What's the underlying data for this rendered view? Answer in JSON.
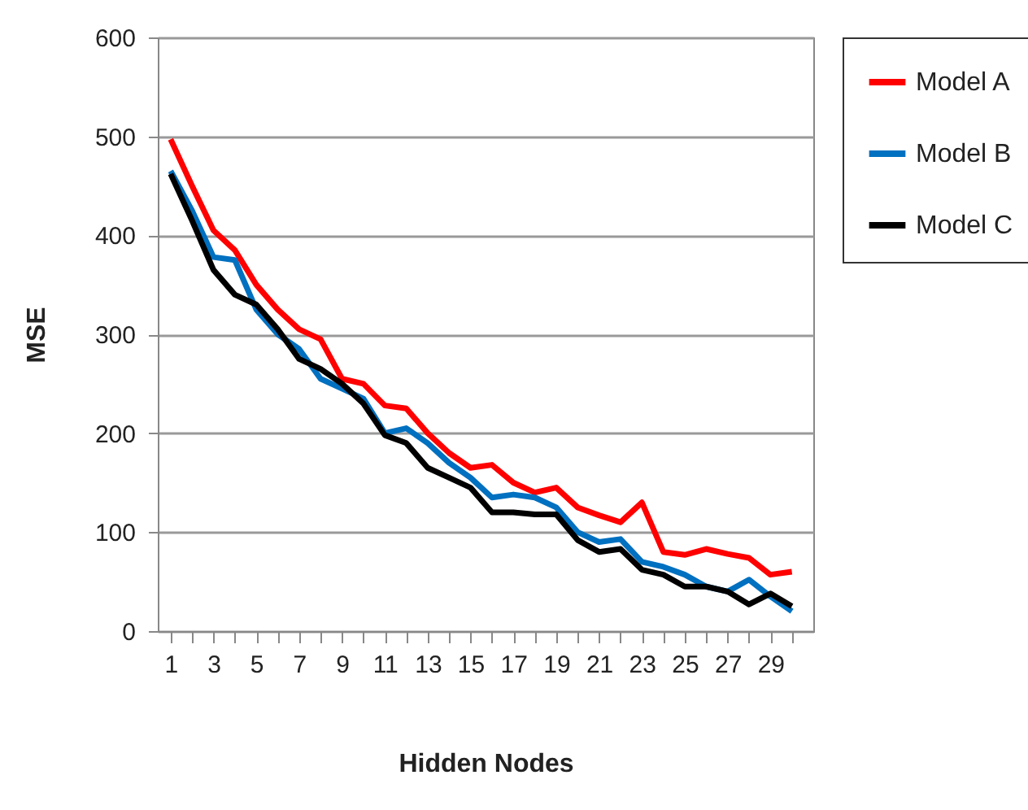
{
  "chart_data": {
    "type": "line",
    "xlabel": "Hidden Nodes",
    "ylabel": "MSE",
    "x": [
      1,
      2,
      3,
      4,
      5,
      6,
      7,
      8,
      9,
      10,
      11,
      12,
      13,
      14,
      15,
      16,
      17,
      18,
      19,
      20,
      21,
      22,
      23,
      24,
      25,
      26,
      27,
      28,
      29,
      30
    ],
    "series": [
      {
        "name": "Model A",
        "color": "#ff0000",
        "values": [
          497,
          450,
          405,
          385,
          350,
          325,
          305,
          295,
          255,
          250,
          228,
          225,
          200,
          180,
          165,
          168,
          150,
          140,
          145,
          125,
          117,
          110,
          130,
          80,
          77,
          83,
          78,
          74,
          57,
          60
        ]
      },
      {
        "name": "Model B",
        "color": "#0070c0",
        "values": [
          465,
          425,
          378,
          375,
          325,
          300,
          285,
          255,
          245,
          235,
          200,
          205,
          190,
          170,
          155,
          135,
          138,
          135,
          125,
          100,
          90,
          93,
          70,
          65,
          57,
          45,
          40,
          52,
          35,
          20
        ]
      },
      {
        "name": "Model C",
        "color": "#000000",
        "values": [
          462,
          415,
          365,
          340,
          330,
          305,
          275,
          265,
          250,
          230,
          198,
          190,
          165,
          155,
          145,
          120,
          120,
          118,
          118,
          92,
          80,
          83,
          62,
          57,
          45,
          45,
          40,
          27,
          38,
          25
        ]
      }
    ],
    "xlim": [
      0.4,
      31
    ],
    "xticks": [
      1,
      {
        "value": 2,
        "label": null
      },
      3,
      {
        "value": 4,
        "label": null
      },
      5,
      {
        "value": 6,
        "label": null
      },
      7,
      {
        "value": 8,
        "label": null
      },
      9,
      {
        "value": 10,
        "label": null
      },
      11,
      {
        "value": 12,
        "label": null
      },
      13,
      {
        "value": 14,
        "label": null
      },
      15,
      {
        "value": 16,
        "label": null
      },
      17,
      {
        "value": 18,
        "label": null
      },
      19,
      {
        "value": 20,
        "label": null
      },
      21,
      {
        "value": 22,
        "label": null
      },
      23,
      {
        "value": 24,
        "label": null
      },
      25,
      {
        "value": 26,
        "label": null
      },
      27,
      {
        "value": 28,
        "label": null
      },
      29,
      {
        "value": 30,
        "label": null
      }
    ],
    "ylim": [
      0,
      600
    ],
    "yticks": [
      0,
      100,
      200,
      300,
      400,
      500,
      600
    ],
    "grid": "y",
    "legend": "right",
    "marker": "none",
    "line_style": "solid"
  }
}
